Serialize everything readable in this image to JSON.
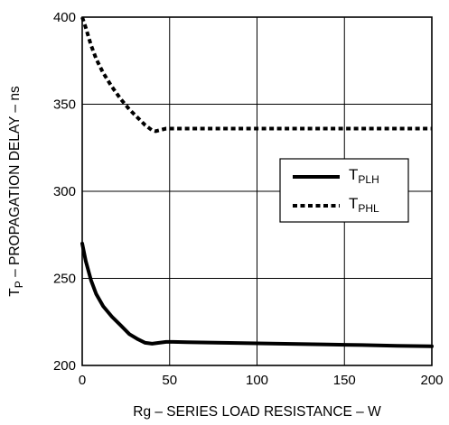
{
  "chart_data": {
    "type": "line",
    "xlabel": "Rg – SERIES LOAD RESISTANCE – W",
    "ylabel": {
      "main": "T",
      "sub": "P",
      "rest": " – PROPAGATION DELAY – ns"
    },
    "xlim": [
      0,
      200
    ],
    "ylim": [
      200,
      400
    ],
    "xticks": [
      "0",
      "50",
      "100",
      "150",
      "200"
    ],
    "yticks": [
      "200",
      "250",
      "300",
      "350",
      "400"
    ],
    "grid": true,
    "legend_position": "right",
    "series": [
      {
        "name": "TPLH",
        "label_main": "T",
        "label_sub": "PLH",
        "style": "solid",
        "color": "#000000",
        "x": [
          0,
          2,
          5,
          8,
          12,
          17,
          22,
          27,
          32,
          36,
          40,
          44,
          48,
          52,
          60,
          80,
          100,
          120,
          140,
          160,
          180,
          200
        ],
        "y": [
          270,
          260,
          249,
          241,
          234,
          228,
          223,
          218,
          215,
          213,
          212.5,
          213,
          213.5,
          213.5,
          213.3,
          213,
          212.7,
          212.4,
          212,
          211.7,
          211.3,
          211
        ]
      },
      {
        "name": "TPHL",
        "label_main": "T",
        "label_sub": "PHL",
        "style": "dotted",
        "color": "#000000",
        "x": [
          0,
          2,
          5,
          8,
          12,
          17,
          22,
          27,
          32,
          36,
          40,
          42,
          44,
          48,
          52,
          60,
          80,
          100,
          120,
          140,
          160,
          180,
          200
        ],
        "y": [
          400,
          394,
          384,
          376,
          368,
          360,
          353,
          347,
          342,
          338,
          335,
          334.5,
          335,
          336,
          336,
          336,
          336,
          336,
          336,
          336,
          336,
          336,
          336
        ]
      }
    ]
  }
}
